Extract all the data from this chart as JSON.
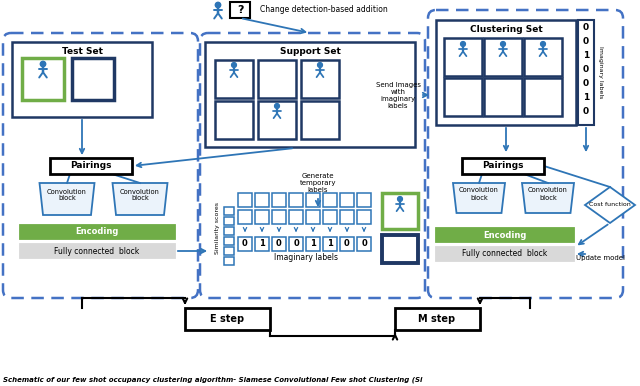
{
  "title": "Schematic of our few shot occupancy clustering algorithm- Siamese Convolutional Few shot Clustering (Si",
  "bg_color": "#ffffff",
  "dashed_blue": "#4472C4",
  "solid_blue": "#2E75B6",
  "dark_blue": "#1F3864",
  "green": "#70AD47",
  "light_gray": "#D9D9D9",
  "black": "#000000",
  "figure_size": [
    6.4,
    3.86
  ],
  "bin_labels_right": [
    "0",
    "0",
    "1",
    "0",
    "0",
    "1",
    "0"
  ],
  "bin_labels_bottom": [
    "0",
    "1",
    "0",
    "0",
    "1",
    "1",
    "0",
    "0"
  ]
}
